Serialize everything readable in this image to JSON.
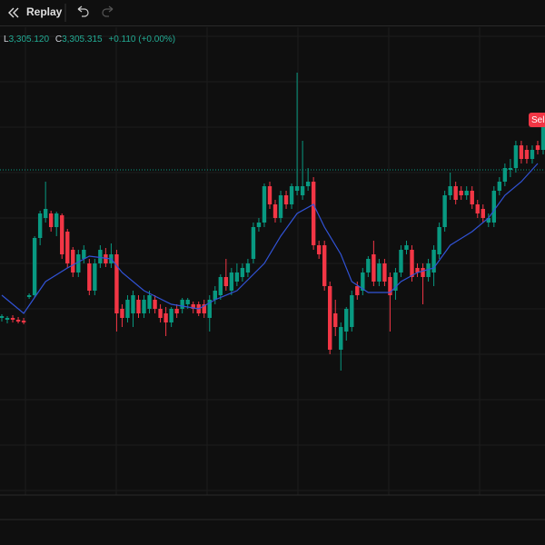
{
  "toolbar": {
    "replay": "Replay"
  },
  "legend": {
    "low_label": "L",
    "low": "3,305.120",
    "close_label": "C",
    "close": "3,305.315",
    "change": "+0.110 (+0.00%)"
  },
  "order_label": "Sell",
  "chart_data": {
    "type": "candlestick",
    "up_color": "#089981",
    "down_color": "#f23645",
    "ylim": [
      55,
      570
    ],
    "price_line": 413,
    "ohlc": [
      [
        250,
        254,
        246,
        252
      ],
      [
        248,
        252,
        244,
        250
      ],
      [
        250,
        253,
        245,
        248
      ],
      [
        248,
        251,
        244,
        246
      ],
      [
        247,
        250,
        243,
        245
      ],
      [
        273,
        277,
        271,
        275
      ],
      [
        275,
        340,
        272,
        338
      ],
      [
        338,
        368,
        330,
        365
      ],
      [
        360,
        400,
        355,
        370
      ],
      [
        365,
        368,
        345,
        350
      ],
      [
        350,
        367,
        340,
        365
      ],
      [
        363,
        365,
        315,
        320
      ],
      [
        345,
        348,
        305,
        310
      ],
      [
        325,
        328,
        295,
        300
      ],
      [
        300,
        325,
        295,
        320
      ],
      [
        315,
        330,
        310,
        325
      ],
      [
        310,
        315,
        275,
        280
      ],
      [
        280,
        315,
        275,
        310
      ],
      [
        310,
        330,
        305,
        325
      ],
      [
        320,
        327,
        306,
        310
      ],
      [
        310,
        332,
        305,
        320
      ],
      [
        320,
        325,
        235,
        255
      ],
      [
        260,
        265,
        240,
        250
      ],
      [
        250,
        275,
        245,
        270
      ],
      [
        255,
        280,
        240,
        275
      ],
      [
        270,
        275,
        250,
        255
      ],
      [
        255,
        275,
        250,
        270
      ],
      [
        260,
        280,
        255,
        275
      ],
      [
        270,
        275,
        255,
        260
      ],
      [
        260,
        265,
        245,
        250
      ],
      [
        255,
        262,
        230,
        245
      ],
      [
        245,
        262,
        240,
        260
      ],
      [
        260,
        265,
        250,
        255
      ],
      [
        260,
        272,
        255,
        270
      ],
      [
        265,
        272,
        260,
        270
      ],
      [
        265,
        268,
        255,
        260
      ],
      [
        265,
        268,
        252,
        255
      ],
      [
        265,
        270,
        250,
        255
      ],
      [
        250,
        275,
        235,
        270
      ],
      [
        270,
        285,
        265,
        280
      ],
      [
        275,
        298,
        270,
        295
      ],
      [
        295,
        315,
        280,
        285
      ],
      [
        280,
        305,
        275,
        300
      ],
      [
        290,
        310,
        285,
        300
      ],
      [
        295,
        310,
        290,
        305
      ],
      [
        300,
        315,
        295,
        310
      ],
      [
        315,
        355,
        310,
        350
      ],
      [
        350,
        360,
        345,
        355
      ],
      [
        355,
        398,
        350,
        395
      ],
      [
        395,
        400,
        370,
        375
      ],
      [
        375,
        380,
        355,
        360
      ],
      [
        360,
        390,
        355,
        385
      ],
      [
        385,
        390,
        370,
        375
      ],
      [
        375,
        398,
        370,
        395
      ],
      [
        390,
        520,
        385,
        395
      ],
      [
        385,
        445,
        380,
        395
      ],
      [
        395,
        415,
        390,
        400
      ],
      [
        400,
        405,
        325,
        330
      ],
      [
        330,
        335,
        315,
        320
      ],
      [
        330,
        335,
        280,
        285
      ],
      [
        285,
        290,
        210,
        215
      ],
      [
        255,
        270,
        230,
        240
      ],
      [
        215,
        245,
        192,
        240
      ],
      [
        235,
        262,
        225,
        260
      ],
      [
        240,
        280,
        235,
        275
      ],
      [
        285,
        290,
        270,
        275
      ],
      [
        280,
        305,
        275,
        300
      ],
      [
        300,
        318,
        295,
        315
      ],
      [
        320,
        335,
        285,
        290
      ],
      [
        290,
        315,
        285,
        310
      ],
      [
        310,
        315,
        285,
        290
      ],
      [
        295,
        300,
        235,
        275
      ],
      [
        280,
        305,
        270,
        300
      ],
      [
        300,
        330,
        295,
        325
      ],
      [
        325,
        335,
        320,
        330
      ],
      [
        325,
        330,
        290,
        295
      ],
      [
        305,
        310,
        295,
        300
      ],
      [
        305,
        310,
        265,
        295
      ],
      [
        295,
        315,
        290,
        310
      ],
      [
        300,
        330,
        285,
        325
      ],
      [
        320,
        355,
        315,
        350
      ],
      [
        350,
        390,
        345,
        385
      ],
      [
        385,
        410,
        380,
        395
      ],
      [
        395,
        400,
        375,
        380
      ],
      [
        390,
        395,
        380,
        385
      ],
      [
        385,
        395,
        380,
        390
      ],
      [
        390,
        395,
        370,
        375
      ],
      [
        375,
        380,
        360,
        365
      ],
      [
        370,
        375,
        355,
        360
      ],
      [
        355,
        365,
        350,
        360
      ],
      [
        355,
        395,
        350,
        390
      ],
      [
        390,
        405,
        385,
        400
      ],
      [
        400,
        420,
        395,
        415
      ],
      [
        413,
        425,
        405,
        415
      ],
      [
        415,
        445,
        410,
        440
      ],
      [
        440,
        445,
        420,
        425
      ],
      [
        435,
        440,
        420,
        425
      ],
      [
        425,
        440,
        420,
        435
      ],
      [
        440,
        445,
        430,
        435
      ],
      [
        435,
        462,
        430,
        460
      ]
    ],
    "ma": {
      "color": "#3153d6",
      "x": [
        0,
        4,
        8,
        12,
        16,
        20,
        22,
        26,
        31,
        36,
        39,
        43,
        48,
        51,
        54,
        57,
        59,
        62,
        64,
        67,
        71,
        73,
        76,
        79,
        82,
        86,
        89,
        92,
        95,
        98
      ],
      "values": [
        275,
        255,
        290,
        305,
        318,
        315,
        300,
        280,
        265,
        260,
        270,
        280,
        310,
        340,
        365,
        375,
        350,
        320,
        290,
        278,
        278,
        290,
        300,
        305,
        330,
        345,
        360,
        385,
        400,
        420
      ]
    }
  }
}
